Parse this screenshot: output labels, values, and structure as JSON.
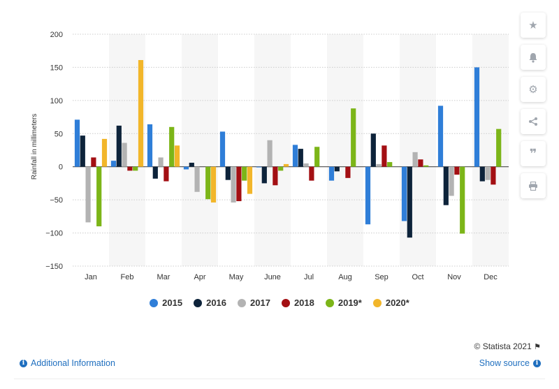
{
  "chart_data": {
    "type": "bar",
    "categories": [
      "Jan",
      "Feb",
      "Mar",
      "Apr",
      "May",
      "June",
      "Jul",
      "Aug",
      "Sep",
      "Oct",
      "Nov",
      "Dec"
    ],
    "series": [
      {
        "name": "2015",
        "color": "#2f7ed8",
        "values": [
          71,
          9,
          64,
          -4,
          53,
          -1,
          33,
          -21,
          -87,
          -82,
          92,
          150
        ]
      },
      {
        "name": "2016",
        "color": "#0d233a",
        "values": [
          47,
          62,
          -18,
          6,
          -20,
          -25,
          27,
          -7,
          50,
          -107,
          -58,
          -22
        ]
      },
      {
        "name": "2017",
        "color": "#b3b3b3",
        "values": [
          -84,
          36,
          14,
          -38,
          -54,
          40,
          5,
          0,
          4,
          22,
          -44,
          -20
        ]
      },
      {
        "name": "2018",
        "color": "#a30f13",
        "values": [
          14,
          -6,
          -22,
          0,
          -52,
          -28,
          -21,
          -17,
          32,
          11,
          -12,
          -27
        ]
      },
      {
        "name": "2019*",
        "color": "#7cb518",
        "values": [
          -90,
          -6,
          60,
          -49,
          -21,
          -6,
          30,
          88,
          7,
          2,
          -101,
          57
        ]
      },
      {
        "name": "2020*",
        "color": "#f2b62a",
        "values": [
          42,
          161,
          32,
          -54,
          -41,
          4,
          null,
          null,
          null,
          null,
          null,
          null
        ]
      }
    ],
    "ylabel": "Rainfall in millimeters",
    "ylim": [
      -150,
      200
    ],
    "yticks": [
      200,
      150,
      100,
      50,
      0,
      -50,
      -100,
      -150
    ],
    "legend_position": "bottom",
    "grid": true
  },
  "toolbar": {
    "icons": [
      "star-icon",
      "bell-icon",
      "gear-icon",
      "share-icon",
      "quote-icon",
      "print-icon"
    ]
  },
  "footer": {
    "copyright": "© Statista 2021",
    "additional_info": "Additional Information",
    "show_source": "Show source"
  }
}
